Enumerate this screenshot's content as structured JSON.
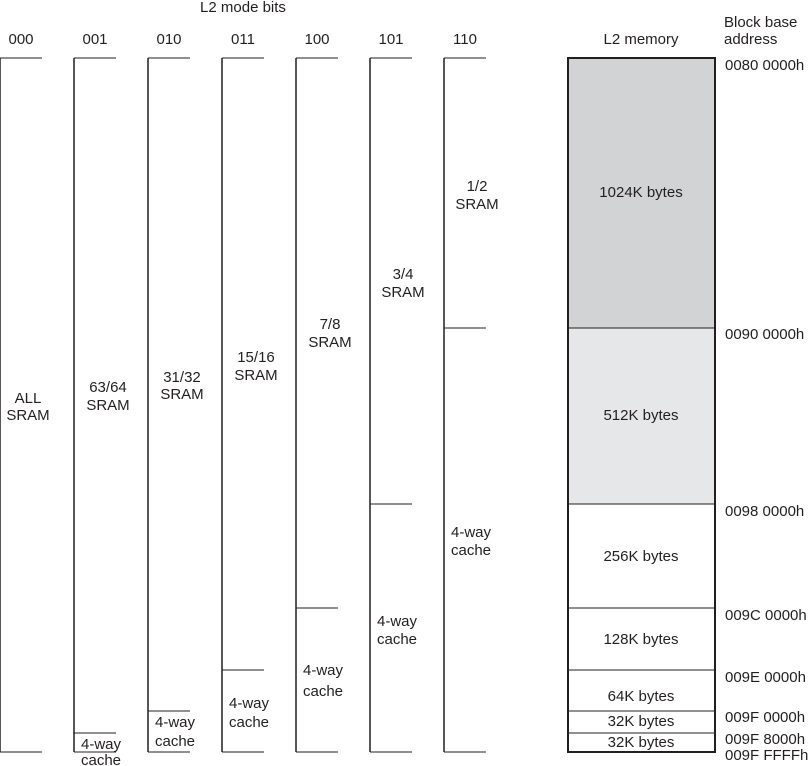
{
  "header": {
    "mode_bits_title": "L2 mode bits",
    "memory_title": "L2 memory",
    "address_title": [
      "Block base",
      "address"
    ]
  },
  "modes": [
    {
      "bits": "000",
      "sram_label": [
        "ALL",
        "SRAM"
      ],
      "cache_label": []
    },
    {
      "bits": "001",
      "sram_label": [
        "63/64",
        "SRAM"
      ],
      "cache_label": [
        "4-way",
        "cache"
      ]
    },
    {
      "bits": "010",
      "sram_label": [
        "31/32",
        "SRAM"
      ],
      "cache_label": [
        "4-way",
        "cache"
      ]
    },
    {
      "bits": "011",
      "sram_label": [
        "15/16",
        "SRAM"
      ],
      "cache_label": [
        "4-way",
        "cache"
      ]
    },
    {
      "bits": "100",
      "sram_label": [
        "7/8",
        "SRAM"
      ],
      "cache_label": [
        "4-way",
        "cache"
      ]
    },
    {
      "bits": "101",
      "sram_label": [
        "3/4",
        "SRAM"
      ],
      "cache_label": [
        "4-way",
        "cache"
      ]
    },
    {
      "bits": "110",
      "sram_label": [
        "1/2",
        "SRAM"
      ],
      "cache_label": [
        "4-way",
        "cache"
      ]
    }
  ],
  "memory_blocks": [
    {
      "label": "1024K bytes",
      "fill": "#d1d3d4"
    },
    {
      "label": "512K bytes",
      "fill": "#e6e7e8"
    },
    {
      "label": "256K bytes",
      "fill": "#ffffff"
    },
    {
      "label": "128K bytes",
      "fill": "#ffffff"
    },
    {
      "label": "64K bytes",
      "fill": "#ffffff"
    },
    {
      "label": "32K bytes",
      "fill": "#ffffff"
    },
    {
      "label": "32K bytes",
      "fill": "#ffffff"
    }
  ],
  "addresses": [
    "0080 0000h",
    "0090 0000h",
    "0098 0000h",
    "009C 0000h",
    "009E 0000h",
    "009F 0000h",
    "009F 8000h",
    "009F FFFFh"
  ],
  "colors": {
    "line": "#231f20",
    "text": "#231f20"
  }
}
